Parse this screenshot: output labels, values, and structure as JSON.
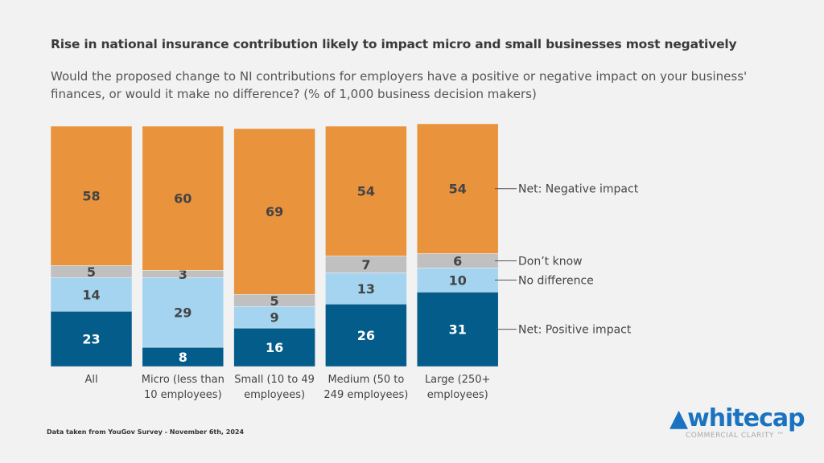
{
  "chart_data": {
    "type": "bar",
    "stacked": true,
    "title": "Rise in national insurance contribution likely to impact micro and small businesses most negatively",
    "subtitle": "Would the proposed change to NI contributions for employers have a positive or negative impact on your business' finances, or would it make no difference? (% of 1,000 business decision makers)",
    "categories": [
      "All",
      "Micro (less than 10 employees)",
      "Small (10 to 49 employees)",
      "Medium (50 to 249 employees)",
      "Large (250+ employees)"
    ],
    "series": [
      {
        "name": "Net: Positive impact",
        "color": "#045c8a",
        "label_color": "#ffffff",
        "values": [
          23,
          8,
          16,
          26,
          31
        ]
      },
      {
        "name": "No difference",
        "color": "#a4d4f0",
        "label_color": "#444444",
        "values": [
          14,
          29,
          9,
          13,
          10
        ]
      },
      {
        "name": "Don’t know",
        "color": "#c0c0c0",
        "label_color": "#444444",
        "values": [
          5,
          3,
          5,
          7,
          6
        ]
      },
      {
        "name": "Net: Negative impact",
        "color": "#e9933d",
        "label_color": "#444444",
        "values": [
          58,
          60,
          69,
          54,
          54
        ]
      }
    ],
    "ylim": [
      0,
      100
    ],
    "legend": "right"
  },
  "footer": "Data taken from YouGov Survey  - November 6th, 2024",
  "logo": {
    "name": "whitecap",
    "tagline": "COMMERCIAL CLARITY ™"
  }
}
